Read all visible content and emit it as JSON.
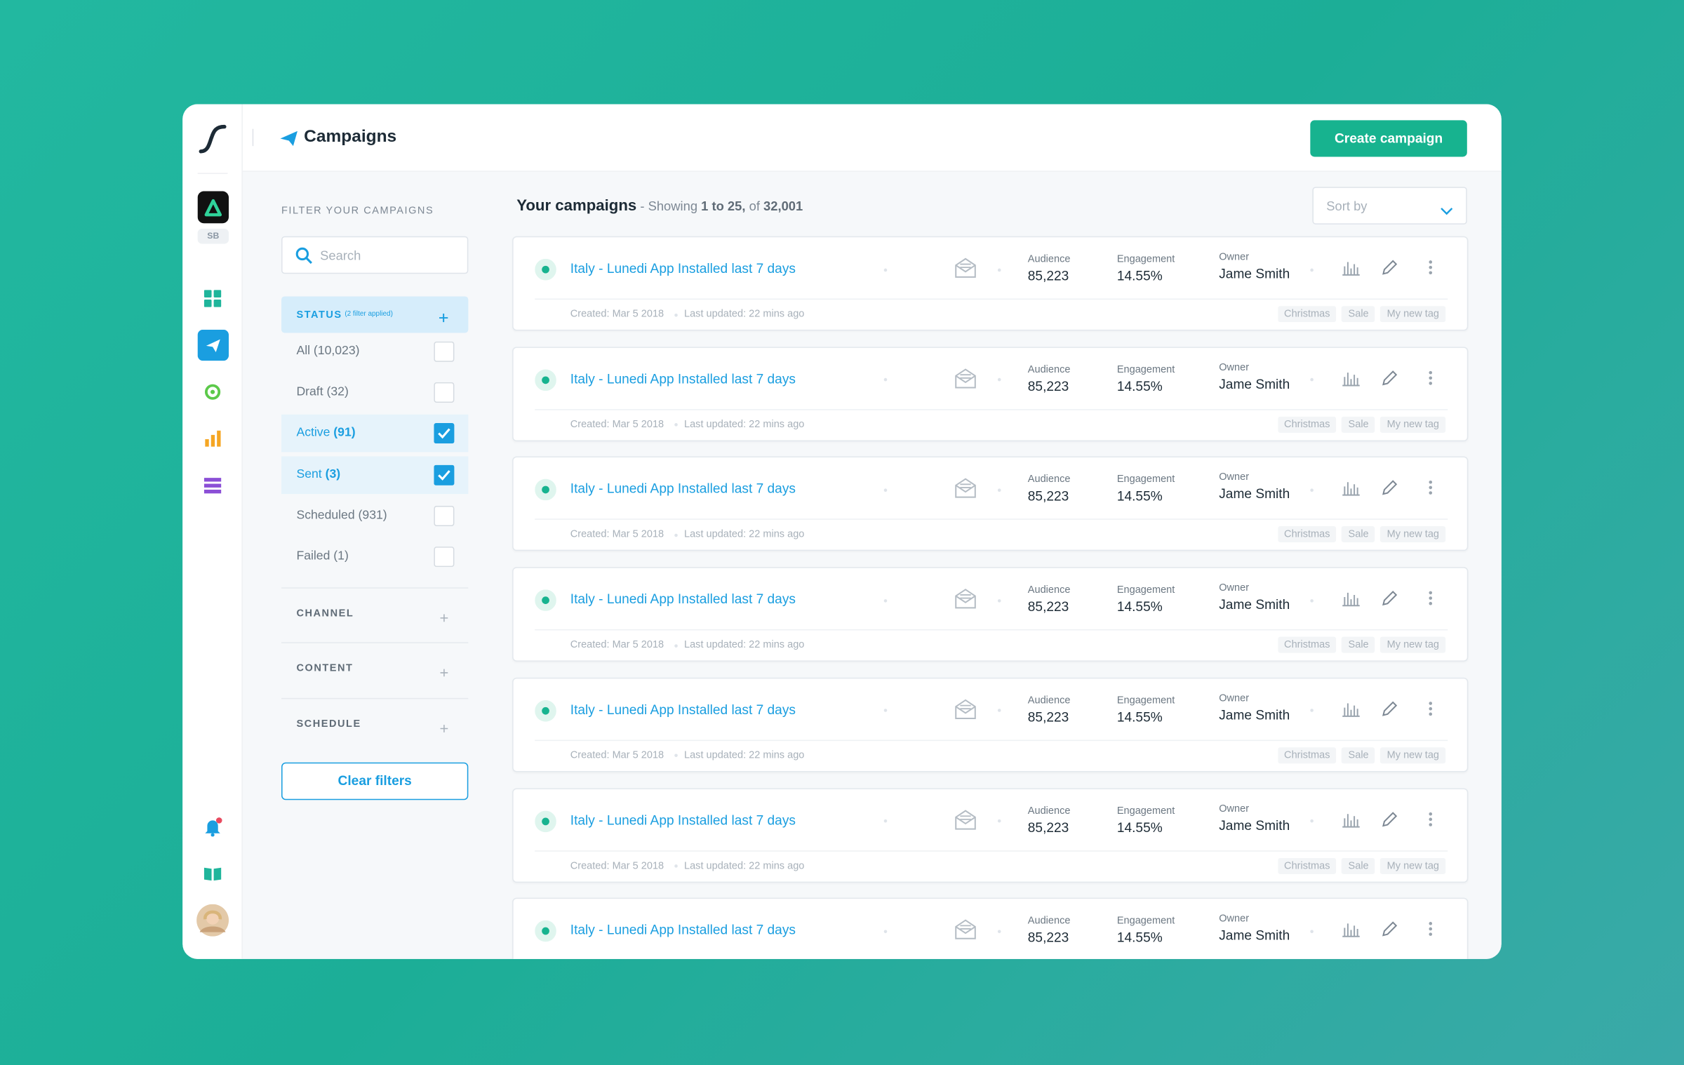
{
  "sidebar": {
    "app_badge": "SB"
  },
  "header": {
    "title": "Campaigns",
    "button": "Create campaign"
  },
  "filters": {
    "heading": "FILTER YOUR CAMPAIGNS",
    "search_placeholder": "Search",
    "status": {
      "title": "STATUS",
      "note": "(2 filter applied)",
      "options": [
        {
          "label": "All",
          "count": "(10,023)",
          "checked": false
        },
        {
          "label": "Draft",
          "count": "(32)",
          "checked": false
        },
        {
          "label": "Active",
          "count": "(91)",
          "checked": true
        },
        {
          "label": "Sent",
          "count": "(3)",
          "checked": true
        },
        {
          "label": "Scheduled",
          "count": "(931)",
          "checked": false
        },
        {
          "label": "Failed",
          "count": "(1)",
          "checked": false
        }
      ]
    },
    "sections": [
      "CHANNEL",
      "CONTENT",
      "SCHEDULE"
    ],
    "clear_button": "Clear filters"
  },
  "campaigns": {
    "title": "Your campaigns",
    "showing": "- Showing",
    "range": "1 to 25,",
    "of": "of",
    "total": "32,001",
    "sort_placeholder": "Sort by",
    "rows": [
      {
        "name": "Italy - Lunedi App Installed last 7 days",
        "audience_label": "Audience",
        "audience": "85,223",
        "engagement_label": "Engagement",
        "engagement": "14.55%",
        "owner_label": "Owner",
        "owner": "Jame Smith",
        "created": "Created: Mar 5 2018",
        "updated": "Last updated: 22 mins ago",
        "tags": [
          "Christmas",
          "Sale",
          "My new tag"
        ]
      },
      {
        "name": "Italy - Lunedi App Installed last 7 days",
        "audience_label": "Audience",
        "audience": "85,223",
        "engagement_label": "Engagement",
        "engagement": "14.55%",
        "owner_label": "Owner",
        "owner": "Jame Smith",
        "created": "Created: Mar 5 2018",
        "updated": "Last updated: 22 mins ago",
        "tags": [
          "Christmas",
          "Sale",
          "My new tag"
        ]
      },
      {
        "name": "Italy - Lunedi App Installed last 7 days",
        "audience_label": "Audience",
        "audience": "85,223",
        "engagement_label": "Engagement",
        "engagement": "14.55%",
        "owner_label": "Owner",
        "owner": "Jame Smith",
        "created": "Created: Mar 5 2018",
        "updated": "Last updated: 22 mins ago",
        "tags": [
          "Christmas",
          "Sale",
          "My new tag"
        ]
      },
      {
        "name": "Italy - Lunedi App Installed last 7 days",
        "audience_label": "Audience",
        "audience": "85,223",
        "engagement_label": "Engagement",
        "engagement": "14.55%",
        "owner_label": "Owner",
        "owner": "Jame Smith",
        "created": "Created: Mar 5 2018",
        "updated": "Last updated: 22 mins ago",
        "tags": [
          "Christmas",
          "Sale",
          "My new tag"
        ]
      },
      {
        "name": "Italy - Lunedi App Installed last 7 days",
        "audience_label": "Audience",
        "audience": "85,223",
        "engagement_label": "Engagement",
        "engagement": "14.55%",
        "owner_label": "Owner",
        "owner": "Jame Smith",
        "created": "Created: Mar 5 2018",
        "updated": "Last updated: 22 mins ago",
        "tags": [
          "Christmas",
          "Sale",
          "My new tag"
        ]
      },
      {
        "name": "Italy - Lunedi App Installed last 7 days",
        "audience_label": "Audience",
        "audience": "85,223",
        "engagement_label": "Engagement",
        "engagement": "14.55%",
        "owner_label": "Owner",
        "owner": "Jame Smith",
        "created": "Created: Mar 5 2018",
        "updated": "Last updated: 22 mins ago",
        "tags": [
          "Christmas",
          "Sale",
          "My new tag"
        ]
      },
      {
        "name": "Italy - Lunedi App Installed last 7 days",
        "audience_label": "Audience",
        "audience": "85,223",
        "engagement_label": "Engagement",
        "engagement": "14.55%",
        "owner_label": "Owner",
        "owner": "Jame Smith"
      }
    ]
  }
}
